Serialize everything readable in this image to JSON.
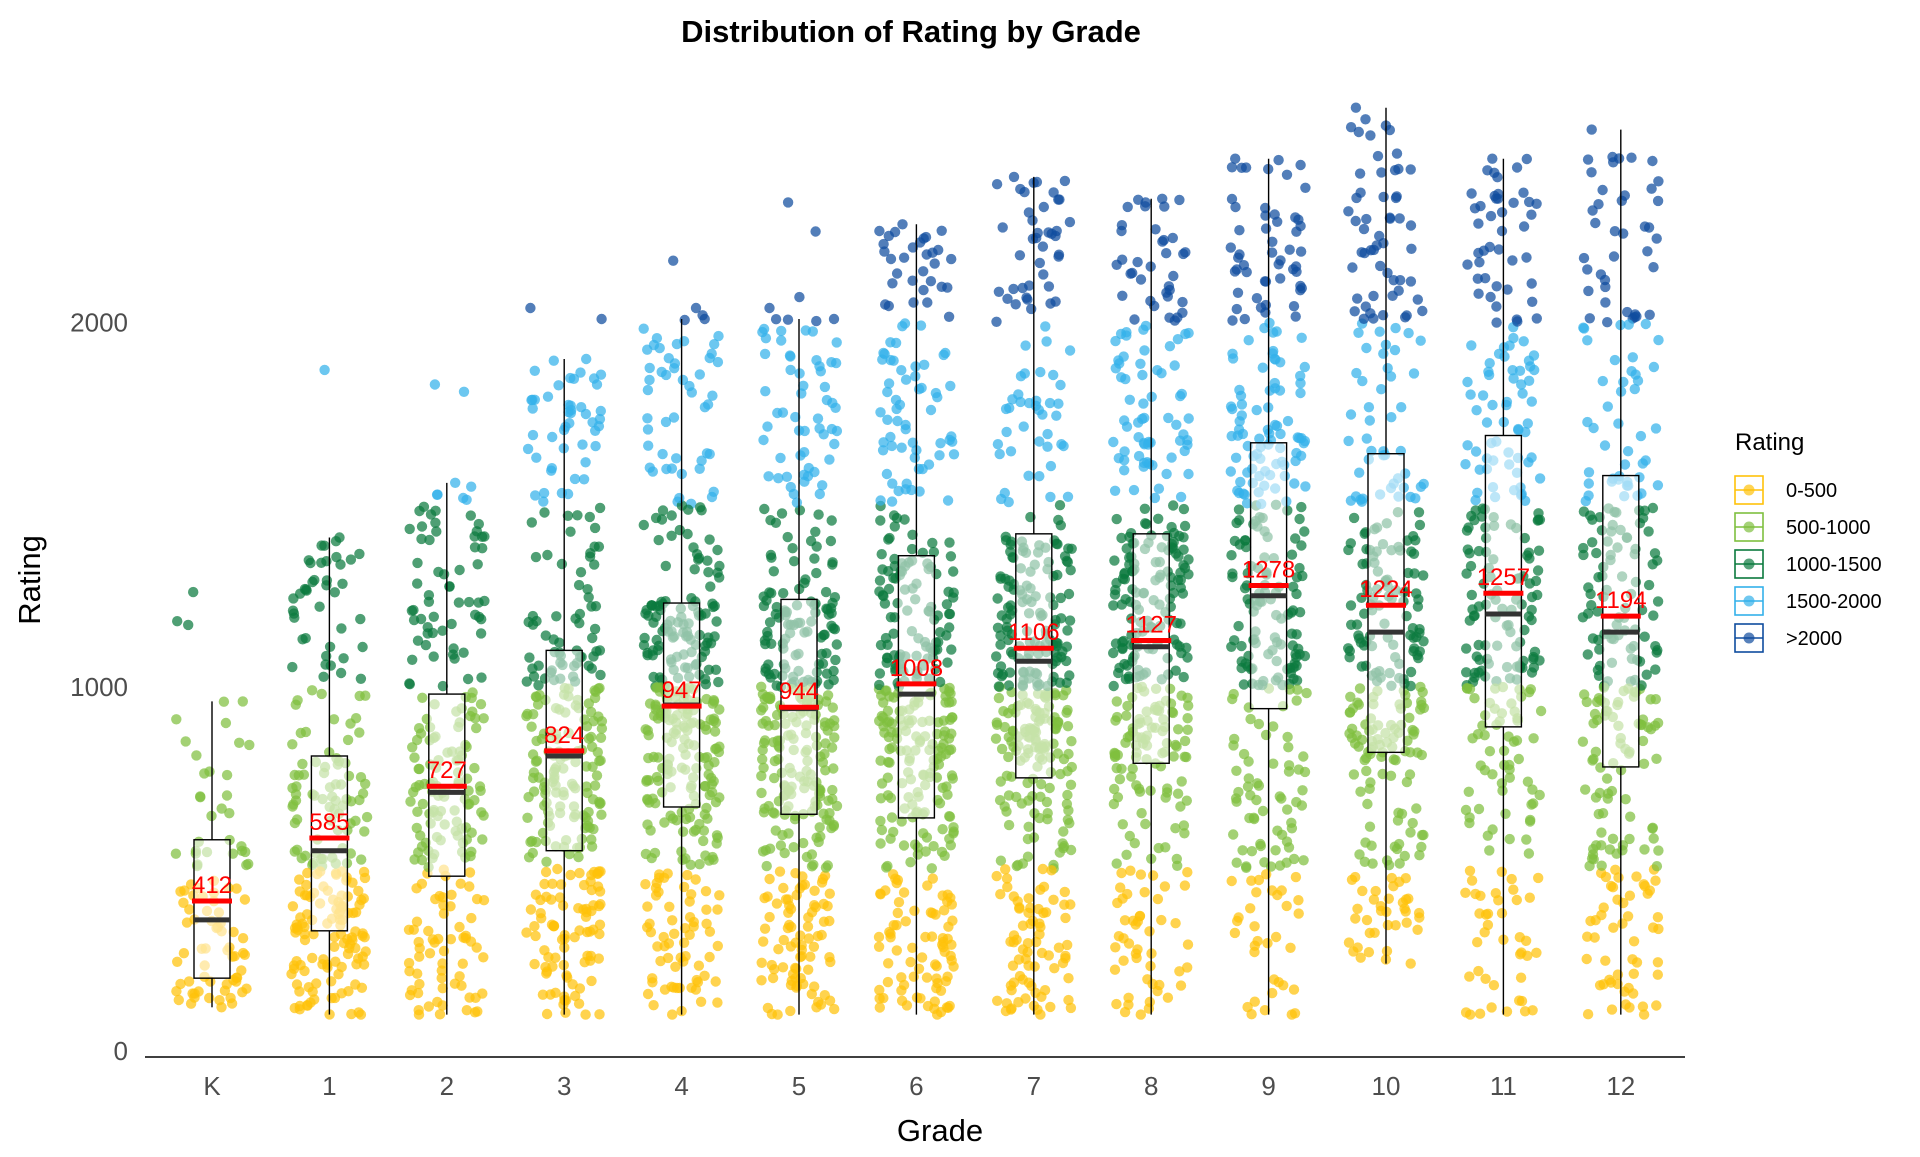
{
  "chart_data": {
    "type": "box-jitter",
    "title": "Distribution of Rating by Grade",
    "xlabel": "Grade",
    "ylabel": "Rating",
    "ylim": [
      0,
      2600
    ],
    "yticks": [
      0,
      1000,
      2000
    ],
    "categories": [
      "K",
      "1",
      "2",
      "3",
      "4",
      "5",
      "6",
      "7",
      "8",
      "9",
      "10",
      "11",
      "12"
    ],
    "boxes": [
      {
        "grade": "K",
        "min": 120,
        "q1": 200,
        "median": 360,
        "q3": 580,
        "max": 960,
        "mean": 412,
        "mean_label": "412",
        "outliers": [
          1170,
          1180,
          1260
        ],
        "count": 90
      },
      {
        "grade": "1",
        "min": 100,
        "q1": 330,
        "median": 550,
        "q3": 810,
        "max": 1410,
        "mean": 585,
        "mean_label": "585",
        "outliers": [
          1870
        ],
        "count": 230
      },
      {
        "grade": "2",
        "min": 100,
        "q1": 480,
        "median": 710,
        "q3": 980,
        "max": 1560,
        "mean": 727,
        "mean_label": "727",
        "outliers": [
          1810,
          1830
        ],
        "count": 230
      },
      {
        "grade": "3",
        "min": 100,
        "q1": 550,
        "median": 810,
        "q3": 1100,
        "max": 1900,
        "mean": 824,
        "mean_label": "824",
        "outliers": [
          2010,
          2040
        ],
        "count": 330
      },
      {
        "grade": "4",
        "min": 100,
        "q1": 670,
        "median": 950,
        "q3": 1230,
        "max": 2010,
        "mean": 947,
        "mean_label": "947",
        "outliers": [
          2020,
          2040,
          2170
        ],
        "count": 380
      },
      {
        "grade": "5",
        "min": 100,
        "q1": 650,
        "median": 940,
        "q3": 1240,
        "max": 2010,
        "mean": 944,
        "mean_label": "944",
        "outliers": [
          2040,
          2070,
          2250,
          2330
        ],
        "count": 400
      },
      {
        "grade": "6",
        "min": 100,
        "q1": 640,
        "median": 980,
        "q3": 1360,
        "max": 2270,
        "mean": 1008,
        "mean_label": "1008",
        "outliers": [],
        "count": 420
      },
      {
        "grade": "7",
        "min": 100,
        "q1": 750,
        "median": 1070,
        "q3": 1420,
        "max": 2400,
        "mean": 1106,
        "mean_label": "1106",
        "outliers": [],
        "count": 420
      },
      {
        "grade": "8",
        "min": 100,
        "q1": 790,
        "median": 1110,
        "q3": 1420,
        "max": 2340,
        "mean": 1127,
        "mean_label": "1127",
        "outliers": [],
        "count": 380
      },
      {
        "grade": "9",
        "min": 100,
        "q1": 940,
        "median": 1250,
        "q3": 1670,
        "max": 2450,
        "mean": 1278,
        "mean_label": "1278",
        "outliers": [],
        "count": 340
      },
      {
        "grade": "10",
        "min": 240,
        "q1": 820,
        "median": 1150,
        "q3": 1640,
        "max": 2590,
        "mean": 1224,
        "mean_label": "1224",
        "outliers": [],
        "count": 330
      },
      {
        "grade": "11",
        "min": 100,
        "q1": 890,
        "median": 1200,
        "q3": 1690,
        "max": 2450,
        "mean": 1257,
        "mean_label": "1257",
        "outliers": [],
        "count": 300
      },
      {
        "grade": "12",
        "min": 100,
        "q1": 780,
        "median": 1150,
        "q3": 1580,
        "max": 2530,
        "mean": 1194,
        "mean_label": "1194",
        "outliers": [],
        "count": 300
      }
    ],
    "legend": {
      "title": "Rating",
      "position": "right",
      "entries": [
        {
          "label": "0-500",
          "color": "#FFC20A"
        },
        {
          "label": "500-1000",
          "color": "#7FBF3F"
        },
        {
          "label": "1000-1500",
          "color": "#0B7A3E"
        },
        {
          "label": "1500-2000",
          "color": "#33B1EA"
        },
        {
          "label": ">2000",
          "color": "#0F4C9E"
        }
      ]
    },
    "mean_color": "#ff0000",
    "median_color": "#333333",
    "grid": false
  }
}
